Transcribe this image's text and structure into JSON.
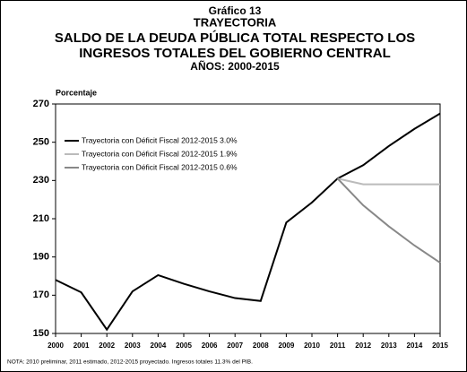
{
  "chart_data": {
    "type": "line",
    "title": [
      "Gráfico 13",
      "TRAYECTORIA",
      "SALDO DE LA DEUDA PÚBLICA TOTAL RESPECTO LOS",
      "INGRESOS TOTALES DEL GOBIERNO CENTRAL",
      "AÑOS: 2000-2015"
    ],
    "ylabel": "Porcentaje",
    "categories": [
      "2000",
      "2001",
      "2002",
      "2003",
      "2004",
      "2005",
      "2006",
      "2007",
      "2008",
      "2009",
      "2010",
      "2011",
      "2012",
      "2013",
      "2014",
      "2015"
    ],
    "series": [
      {
        "name": "Trayectoria con Déficit Fiscal 2012-2015 3.0%",
        "color": "#000000",
        "values": [
          178,
          171.5,
          152,
          172,
          180.5,
          176,
          172,
          168.5,
          167,
          208,
          218.5,
          231,
          238,
          248,
          257,
          265
        ]
      },
      {
        "name": "Trayectoria con Déficit Fiscal 2012-2015 1.9%",
        "color": "#bbbbbb",
        "values": [
          null,
          null,
          null,
          null,
          null,
          null,
          null,
          null,
          null,
          null,
          null,
          231,
          228,
          228,
          228,
          228
        ]
      },
      {
        "name": "Trayectoria con Déficit Fiscal 2012-2015 0.6%",
        "color": "#888888",
        "values": [
          null,
          null,
          null,
          null,
          null,
          null,
          null,
          null,
          null,
          null,
          null,
          231,
          217,
          206,
          196,
          187
        ]
      }
    ],
    "ylim": [
      150,
      270
    ],
    "yticks": [
      150,
      170,
      190,
      210,
      230,
      250,
      270
    ],
    "legend": "upper left",
    "note": "NOTA: 2010 preliminar, 2011 estimado, 2012-2015 proyectado. Ingresos totales 11.3% del PIB."
  }
}
